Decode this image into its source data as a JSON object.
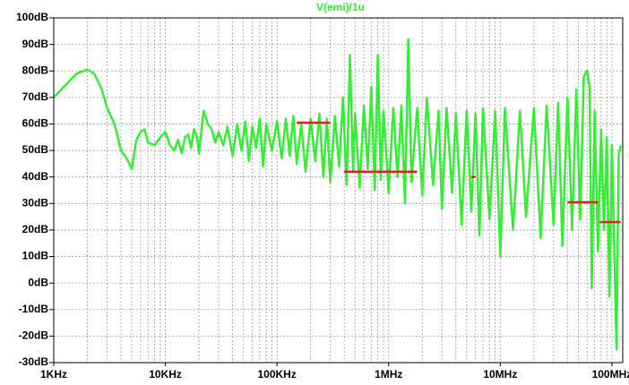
{
  "chart_data": {
    "type": "line",
    "title": "V(emi)/1u",
    "title_color": "#2ee82e",
    "log_x": true,
    "grid": true,
    "xlim": [
      1000,
      125000000
    ],
    "ylim": [
      -30,
      100
    ],
    "xticks": [
      {
        "value": 1000,
        "label": "1KHz"
      },
      {
        "value": 10000,
        "label": "10KHz"
      },
      {
        "value": 100000,
        "label": "100KHz"
      },
      {
        "value": 1000000,
        "label": "1MHz"
      },
      {
        "value": 10000000,
        "label": "10MHz"
      },
      {
        "value": 100000000,
        "label": "100MHz"
      }
    ],
    "x_minor_ticks": [
      2000,
      3000,
      4000,
      5000,
      6000,
      7000,
      8000,
      9000,
      20000,
      30000,
      40000,
      50000,
      60000,
      70000,
      80000,
      90000,
      200000,
      300000,
      400000,
      500000,
      600000,
      700000,
      800000,
      900000,
      2000000,
      3000000,
      4000000,
      5000000,
      6000000,
      7000000,
      8000000,
      9000000,
      20000000,
      30000000,
      40000000,
      50000000,
      60000000,
      70000000,
      80000000,
      90000000
    ],
    "yticks": [
      {
        "value": 100,
        "label": "100dB"
      },
      {
        "value": 90,
        "label": "90dB"
      },
      {
        "value": 80,
        "label": "80dB"
      },
      {
        "value": 70,
        "label": "70dB"
      },
      {
        "value": 60,
        "label": "60dB"
      },
      {
        "value": 50,
        "label": "50dB"
      },
      {
        "value": 40,
        "label": "40dB"
      },
      {
        "value": 30,
        "label": "30dB"
      },
      {
        "value": 20,
        "label": "20dB"
      },
      {
        "value": 10,
        "label": "10dB"
      },
      {
        "value": 0,
        "label": "0dB"
      },
      {
        "value": -10,
        "label": "-10dB"
      },
      {
        "value": -20,
        "label": "-20dB"
      },
      {
        "value": -30,
        "label": "-30dB"
      }
    ],
    "series": [
      {
        "color": "#33ee33",
        "width": 2.5,
        "x": [
          1000,
          1300,
          1600,
          2000,
          2300,
          2700,
          3000,
          3500,
          4000,
          4500,
          5000,
          5500,
          6000,
          6500,
          7000,
          8000,
          9000,
          10000,
          11000,
          12000,
          13000,
          14000,
          15000,
          16000,
          17000,
          18000,
          19000,
          20000,
          22000,
          24000,
          26000,
          28000,
          30000,
          33000,
          36000,
          40000,
          44000,
          48000,
          52000,
          56000,
          60000,
          65000,
          70000,
          75000,
          80000,
          90000,
          100000,
          110000,
          120000,
          130000,
          140000,
          150000,
          165000,
          180000,
          200000,
          220000,
          240000,
          260000,
          280000,
          300000,
          330000,
          360000,
          390000,
          420000,
          450000,
          480000,
          500000,
          550000,
          600000,
          650000,
          700000,
          750000,
          800000,
          850000,
          900000,
          1000000,
          1100000,
          1200000,
          1300000,
          1400000,
          1500000,
          1600000,
          1800000,
          2000000,
          2200000,
          2500000,
          2800000,
          3000000,
          3300000,
          3700000,
          4000000,
          4500000,
          5000000,
          5500000,
          6000000,
          6500000,
          7000000,
          8000000,
          9000000,
          10000000,
          11000000,
          13000000,
          15000000,
          17000000,
          20000000,
          23000000,
          26000000,
          30000000,
          33000000,
          36000000,
          40000000,
          44000000,
          48000000,
          52000000,
          56000000,
          60000000,
          63000000,
          66000000,
          70000000,
          75000000,
          80000000,
          85000000,
          90000000,
          95000000,
          100000000,
          110000000,
          115000000,
          120000000
        ],
        "values": [
          70,
          75,
          79,
          80.5,
          79,
          73,
          66,
          60,
          50,
          47,
          43,
          54,
          57,
          58,
          53,
          52,
          55,
          57,
          52,
          50,
          54,
          49,
          55,
          56,
          51,
          58,
          56,
          49,
          65,
          60,
          58,
          53,
          57,
          52,
          59,
          48,
          60,
          50,
          61,
          46,
          59,
          51,
          62,
          44,
          60,
          50,
          61,
          47,
          62,
          48,
          63,
          45,
          60,
          42,
          62,
          46,
          64,
          40,
          62,
          38,
          63,
          44,
          70,
          37,
          86,
          42,
          64,
          36,
          67,
          43,
          74,
          35,
          86,
          39,
          65,
          34,
          66,
          40,
          67,
          30,
          92,
          38,
          66,
          33,
          70,
          37,
          65,
          28,
          66,
          34,
          64,
          22,
          65,
          27,
          64,
          18,
          66,
          24,
          65,
          10,
          66,
          20,
          65,
          25,
          66,
          17,
          67,
          22,
          68,
          14,
          70,
          20,
          73,
          24,
          78,
          80,
          74,
          -2,
          65,
          12,
          58,
          20,
          55,
          -5,
          52,
          -25,
          48,
          52
        ]
      },
      {
        "color": "#dd2222",
        "width": 2.5,
        "x": [
          150000,
          300000
        ],
        "values": [
          60.5,
          60.5
        ]
      },
      {
        "color": "#dd2222",
        "width": 2.5,
        "x": [
          400000,
          1800000
        ],
        "values": [
          42,
          42
        ]
      },
      {
        "color": "#dd2222",
        "width": 2.5,
        "x": [
          5500000,
          6000000
        ],
        "values": [
          40,
          40
        ]
      },
      {
        "color": "#dd2222",
        "width": 2.5,
        "x": [
          40000000,
          75000000
        ],
        "values": [
          30.5,
          30.5
        ]
      },
      {
        "color": "#dd2222",
        "width": 2.5,
        "x": [
          78000000,
          120000000
        ],
        "values": [
          23,
          23
        ]
      }
    ]
  }
}
